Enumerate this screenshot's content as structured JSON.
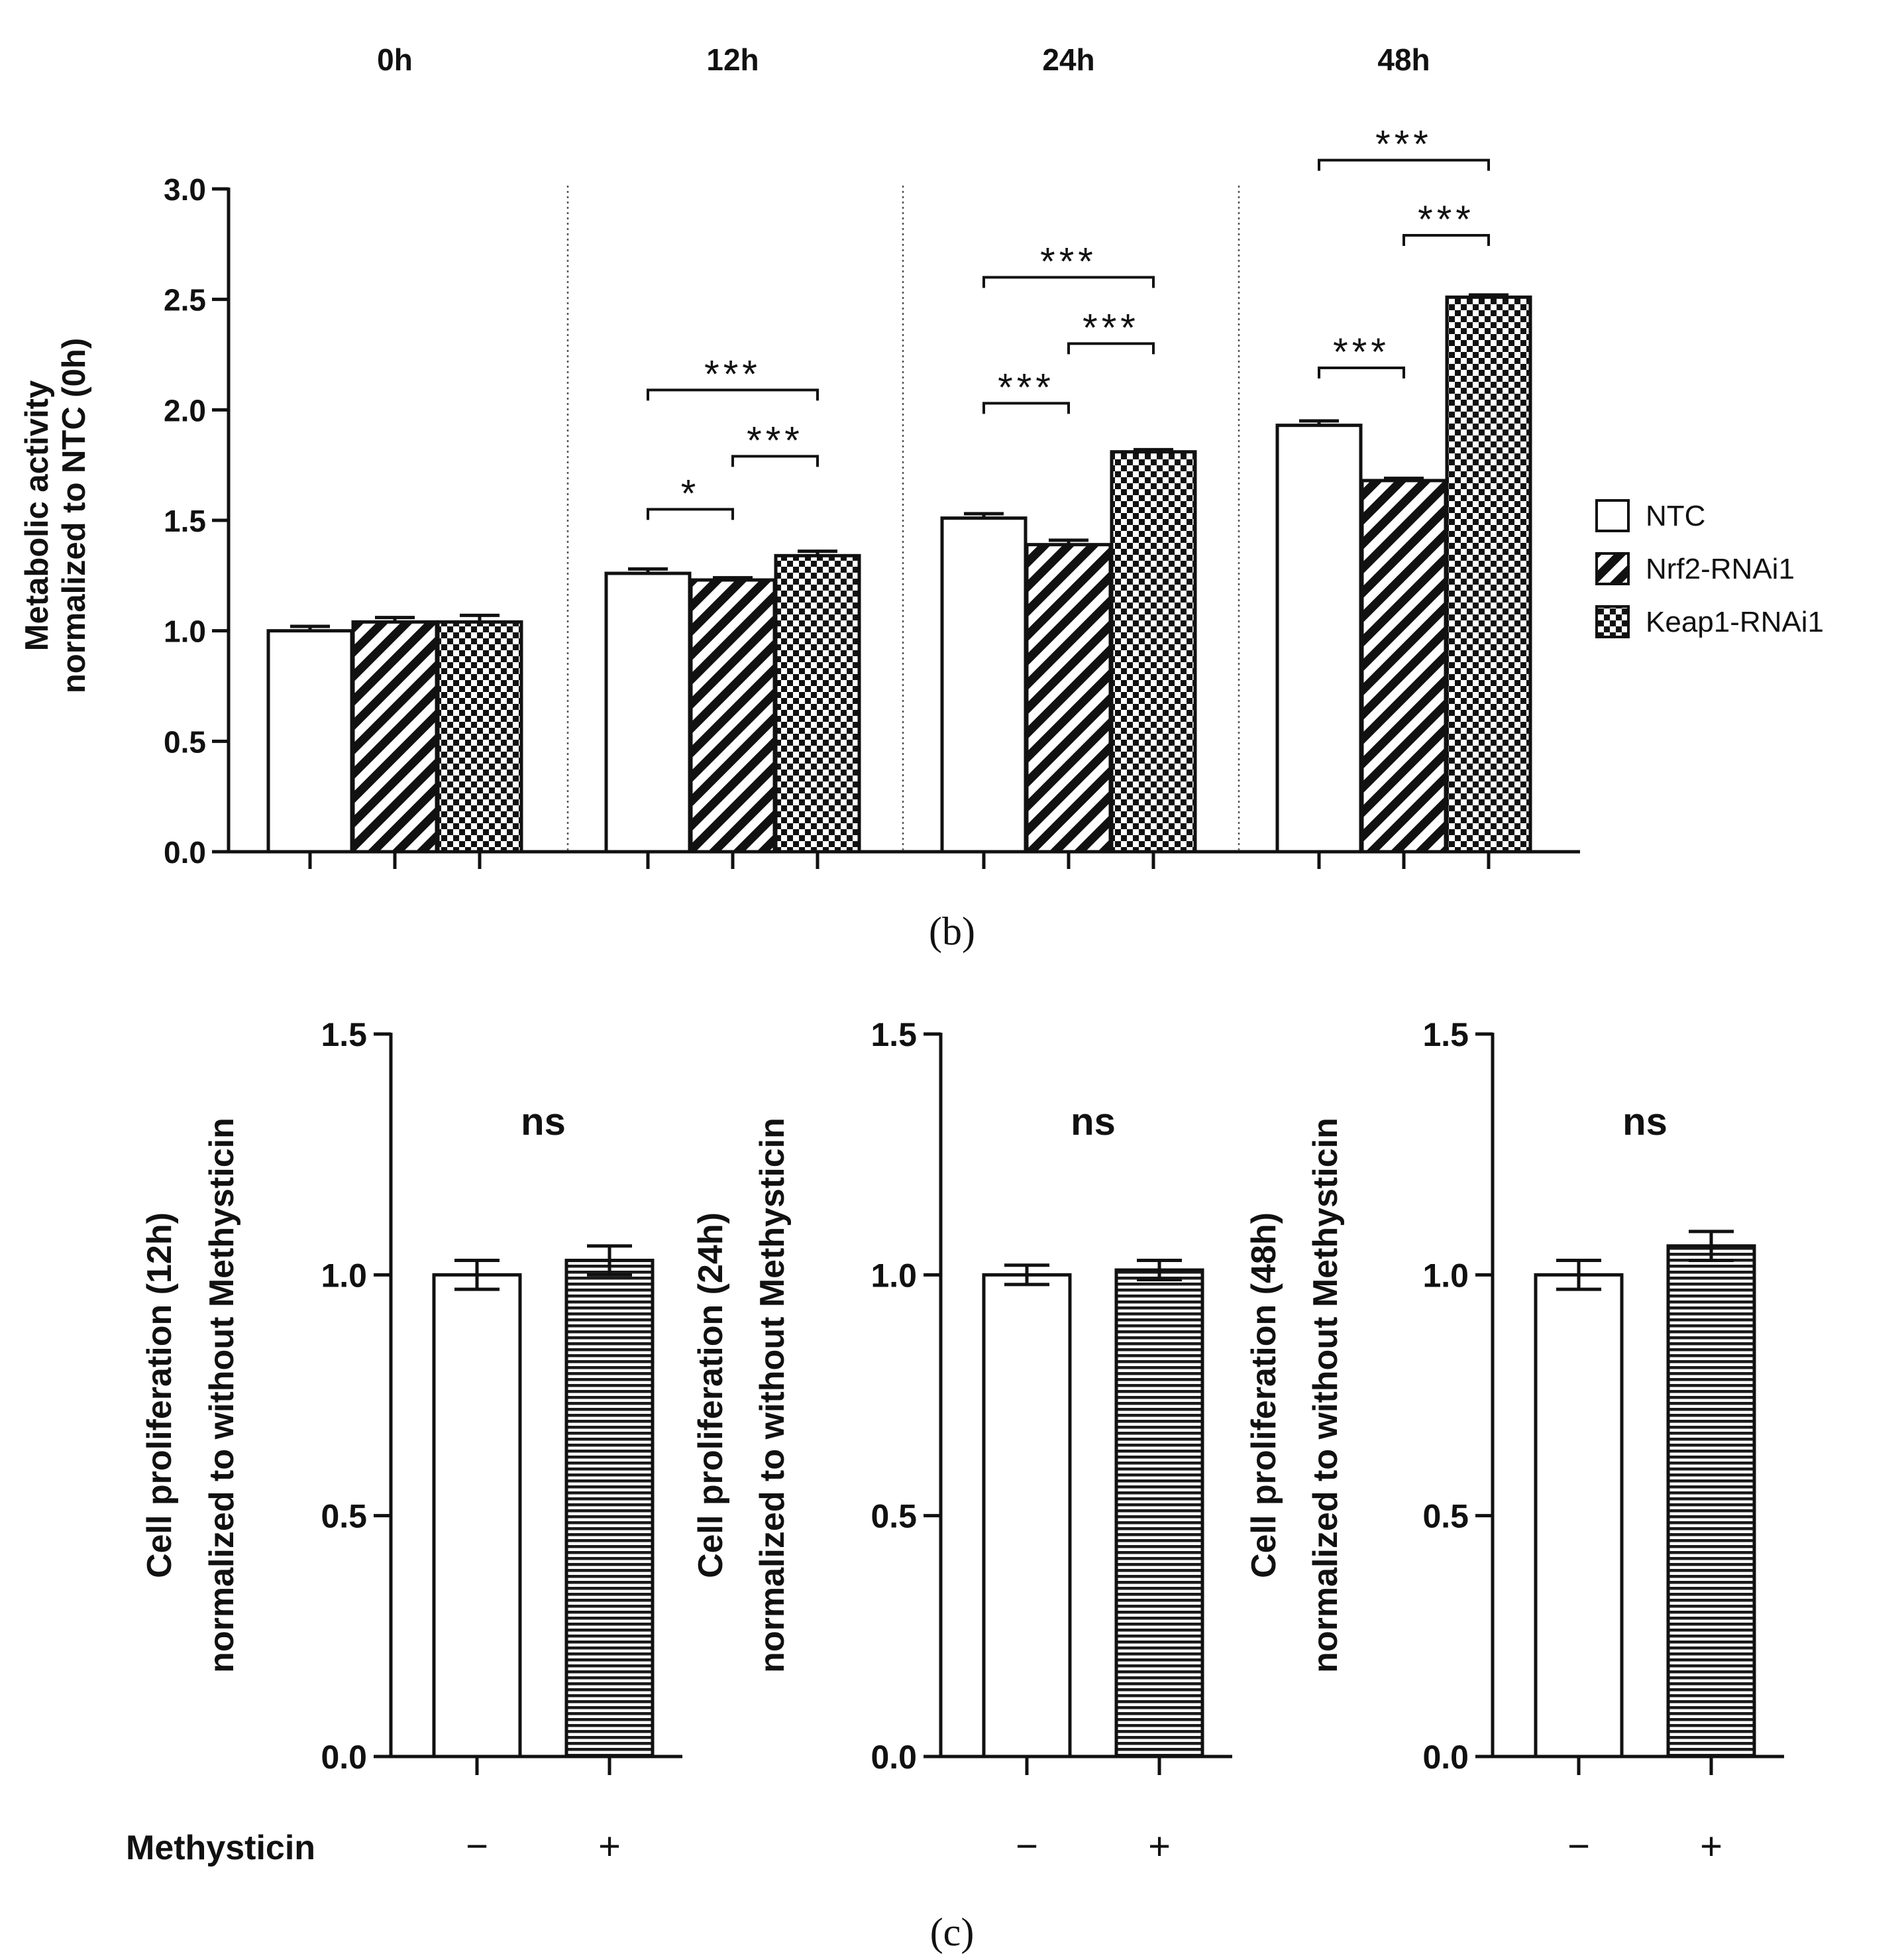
{
  "chart_data": [
    {
      "type": "bar",
      "panel_label": "(b)",
      "ylabel_lines": [
        "Metabolic activity",
        "normalized to NTC (0h)"
      ],
      "ylim": [
        0,
        3.0
      ],
      "yticks": [
        "0.0",
        "0.5",
        "1.0",
        "1.5",
        "2.0",
        "2.5",
        "3.0"
      ],
      "groups": [
        "0h",
        "12h",
        "24h",
        "48h"
      ],
      "series": [
        {
          "name": "NTC",
          "pattern": "white",
          "values": [
            1.0,
            1.26,
            1.51,
            1.93
          ],
          "errors": [
            0.02,
            0.02,
            0.02,
            0.02
          ]
        },
        {
          "name": "Nrf2-RNAi1",
          "pattern": "diagonal",
          "values": [
            1.04,
            1.23,
            1.39,
            1.68
          ],
          "errors": [
            0.02,
            0.01,
            0.02,
            0.01
          ]
        },
        {
          "name": "Keap1-RNAi1",
          "pattern": "checker",
          "values": [
            1.04,
            1.34,
            1.81,
            2.51
          ],
          "errors": [
            0.03,
            0.02,
            0.01,
            0.01
          ]
        }
      ],
      "significance": [
        {
          "group": 1,
          "from": 0,
          "to": 1,
          "y": 1.55,
          "label": "*"
        },
        {
          "group": 1,
          "from": 1,
          "to": 2,
          "y": 1.79,
          "label": "***"
        },
        {
          "group": 1,
          "from": 0,
          "to": 2,
          "y": 2.09,
          "label": "***"
        },
        {
          "group": 2,
          "from": 0,
          "to": 1,
          "y": 2.03,
          "label": "***"
        },
        {
          "group": 2,
          "from": 1,
          "to": 2,
          "y": 2.3,
          "label": "***"
        },
        {
          "group": 2,
          "from": 0,
          "to": 2,
          "y": 2.6,
          "label": "***"
        },
        {
          "group": 3,
          "from": 0,
          "to": 1,
          "y": 2.19,
          "label": "***"
        },
        {
          "group": 3,
          "from": 1,
          "to": 2,
          "y": 2.79,
          "label": "***"
        },
        {
          "group": 3,
          "from": 0,
          "to": 2,
          "y": 3.13,
          "label": "***"
        }
      ],
      "legend": [
        "NTC",
        "Nrf2-RNAi1",
        "Keap1-RNAi1"
      ]
    },
    {
      "type": "bar",
      "panel_label": "(c)",
      "x_title": "Methysticin",
      "categories": [
        "−",
        "+"
      ],
      "ylim": [
        0,
        1.5
      ],
      "yticks": [
        "0.0",
        "0.5",
        "1.0",
        "1.5"
      ],
      "subplots": [
        {
          "ylabel_lines": [
            "Cell proliferation (12h)",
            "normalized to without Methysticin"
          ],
          "values": [
            1.0,
            1.03
          ],
          "errors": [
            0.03,
            0.03
          ],
          "annotation": "ns"
        },
        {
          "ylabel_lines": [
            "Cell proliferation (24h)",
            "normalized to without Methysticin"
          ],
          "values": [
            1.0,
            1.01
          ],
          "errors": [
            0.02,
            0.02
          ],
          "annotation": "ns"
        },
        {
          "ylabel_lines": [
            "Cell proliferation (48h)",
            "normalized to without Methysticin"
          ],
          "values": [
            1.0,
            1.06
          ],
          "errors": [
            0.03,
            0.03
          ],
          "annotation": "ns"
        }
      ]
    }
  ]
}
